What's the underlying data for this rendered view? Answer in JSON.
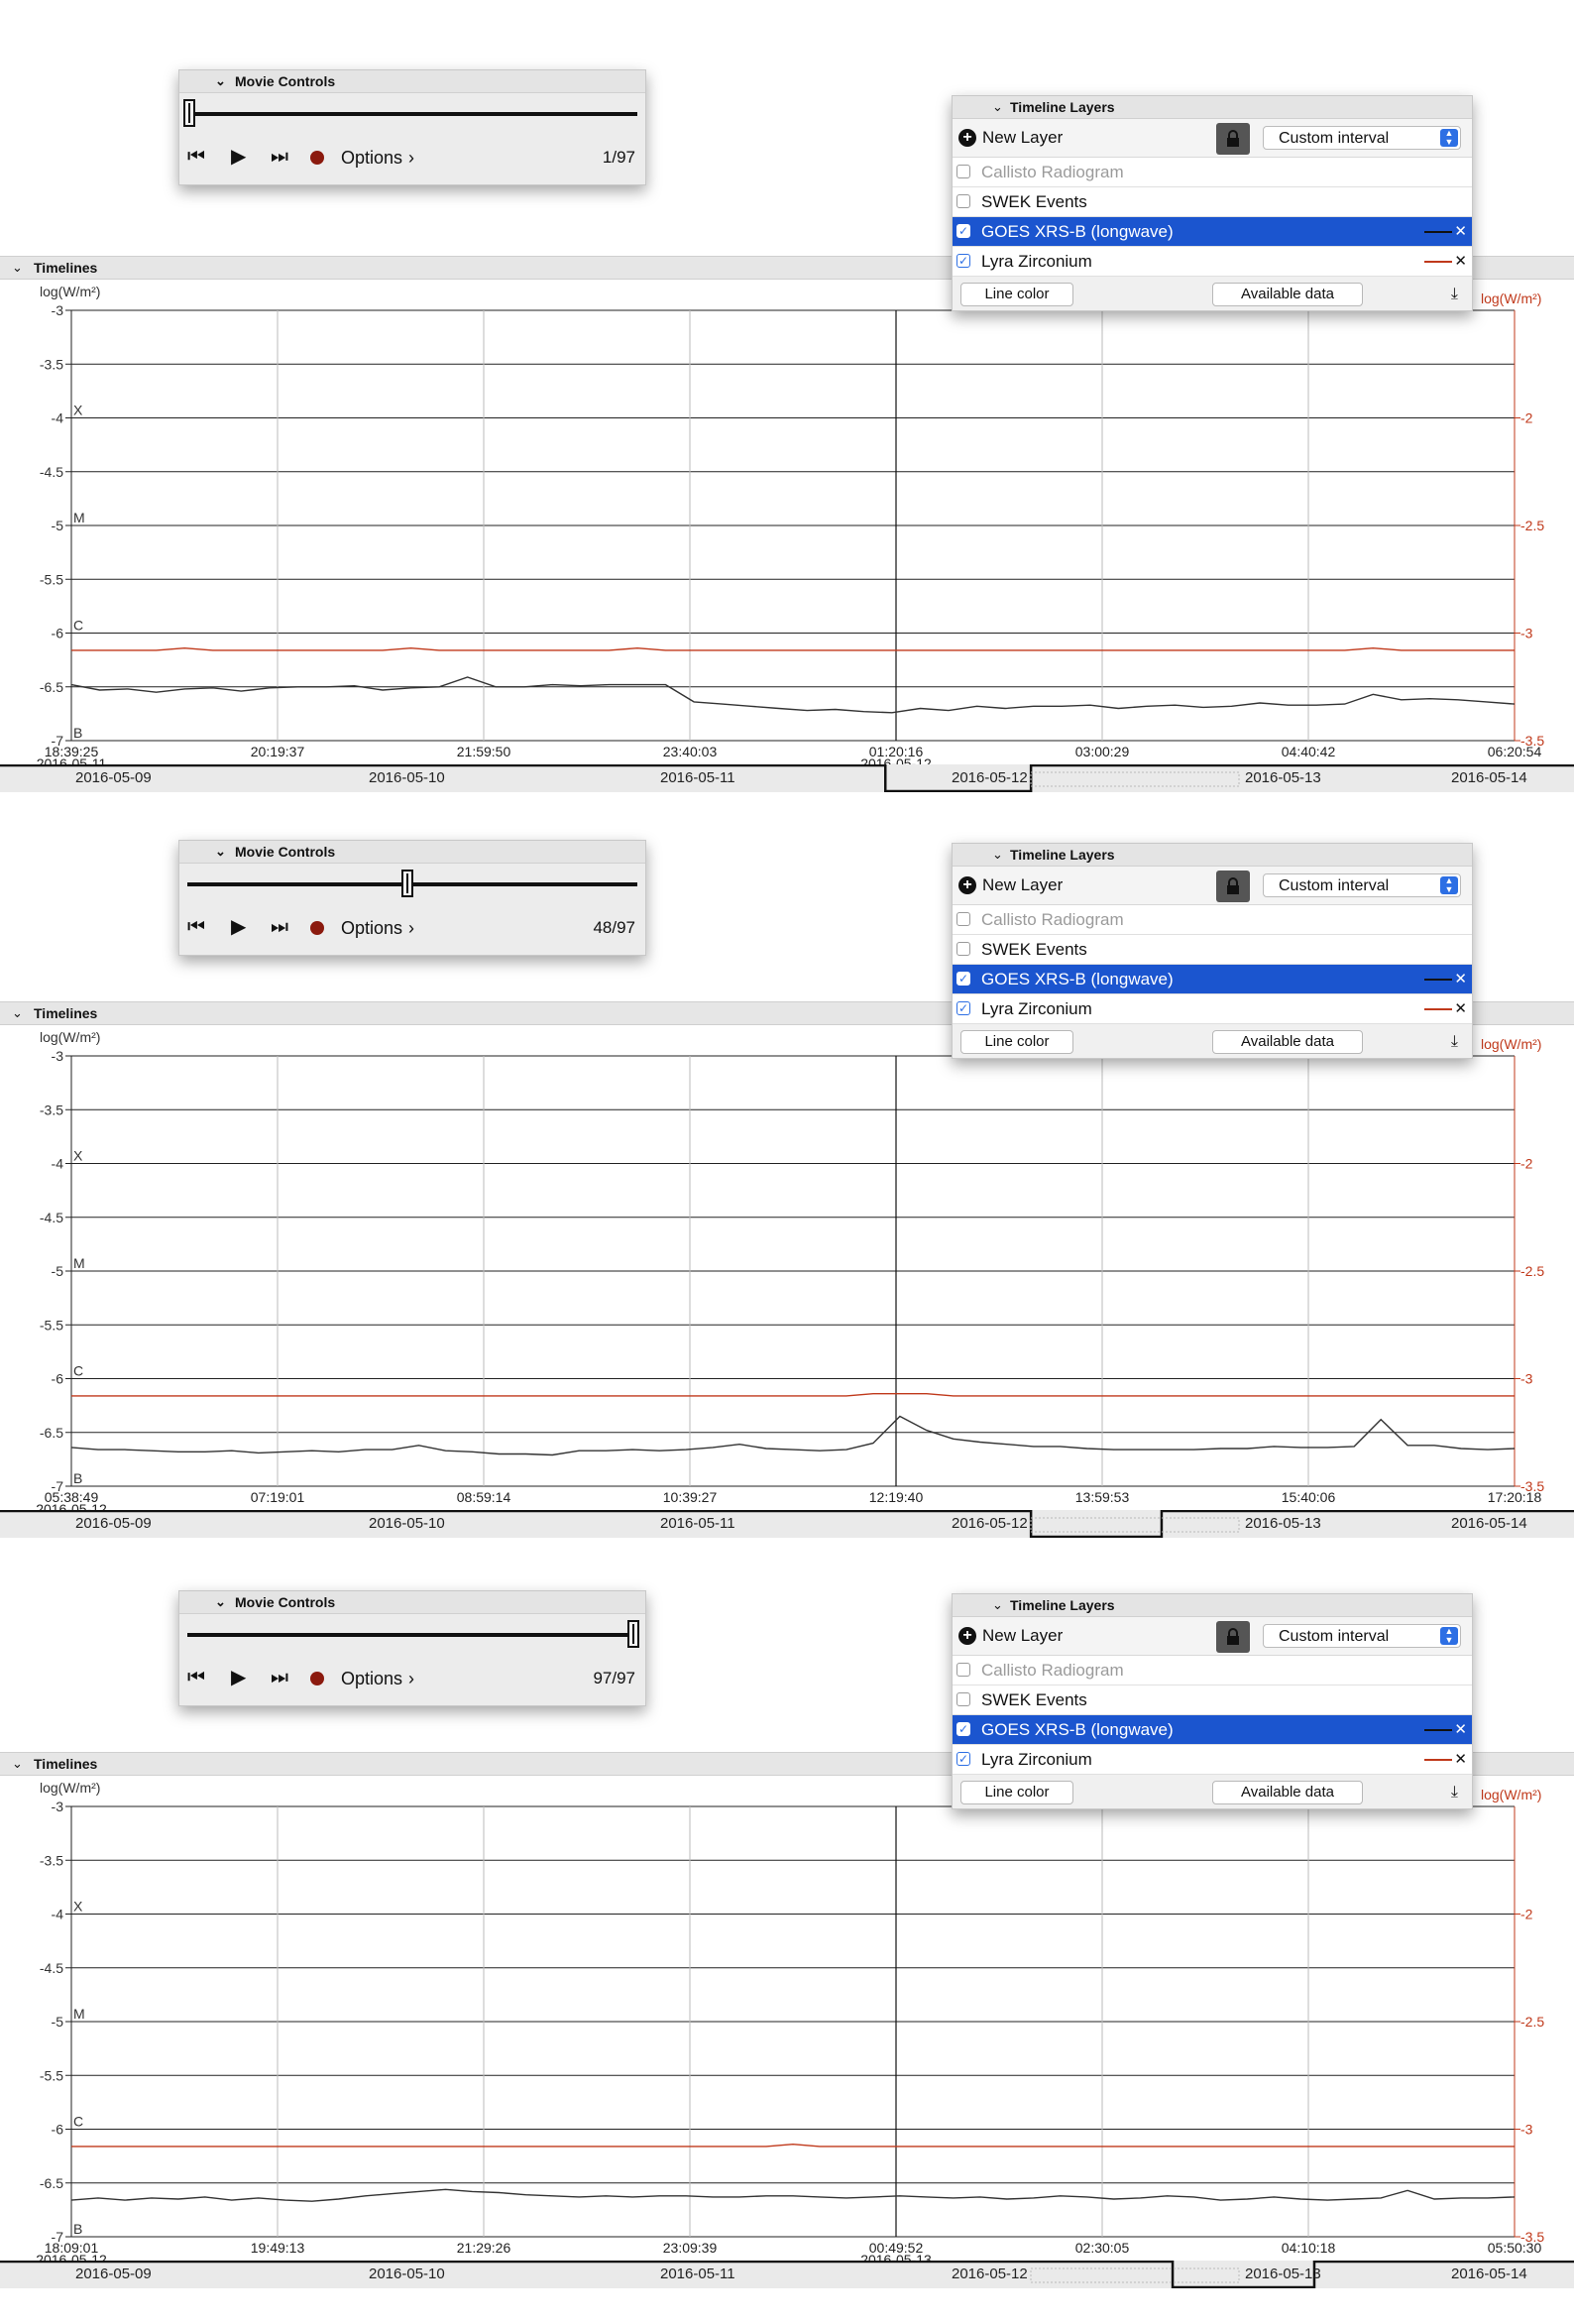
{
  "movie_controls": {
    "title": "Movie Controls",
    "options_label": "Options",
    "options_chevron": "›",
    "icons": [
      "step-back-icon",
      "play-icon",
      "step-forward-icon",
      "record-icon"
    ]
  },
  "timelines_label": "Timelines",
  "layers_panel": {
    "title": "Timeline Layers",
    "new_layer_label": "New Layer",
    "interval_value": "Custom interval",
    "line_color_label": "Line color",
    "available_data_label": "Available data",
    "rows": [
      {
        "name": "Callisto Radiogram",
        "checked": false,
        "disabled": true,
        "selected": false
      },
      {
        "name": "SWEK Events",
        "checked": false,
        "disabled": false,
        "selected": false
      },
      {
        "name": "GOES XRS-B (longwave)",
        "checked": true,
        "disabled": false,
        "selected": true,
        "color": "#111111"
      },
      {
        "name": "Lyra Zirconium",
        "checked": true,
        "disabled": false,
        "selected": false,
        "color": "#c0391b"
      }
    ]
  },
  "range_dates": [
    "2016-05-09",
    "2016-05-10",
    "2016-05-11",
    "2016-05-12",
    "2016-05-13",
    "2016-05-14"
  ],
  "panels": [
    {
      "frame_label": "1/97",
      "frame_fraction": 0.0,
      "chart_data": {
        "type": "line",
        "left_axis_label": "log(W/m²)",
        "right_axis_label": "log(W/m²)",
        "left_ticks": [
          "-3",
          "-3.5",
          "-4",
          "-4.5",
          "-5",
          "-5.5",
          "-6",
          "-6.5",
          "-7"
        ],
        "right_ticks": [
          "-2",
          "-2.5",
          "-3",
          "-3.5"
        ],
        "flare_classes": [
          "X",
          "M",
          "C",
          "B"
        ],
        "x_ticks": [
          "18:39:25",
          "20:19:37",
          "21:59:50",
          "23:40:03",
          "01:20:16",
          "03:00:29",
          "04:40:42",
          "06:20:54"
        ],
        "x_dates": {
          "first": "2016-05-11",
          "midnight": "2016-05-12"
        },
        "ylim_left": [
          -7,
          -3
        ],
        "ylim_right": [
          -3.5,
          -1.5
        ],
        "series": [
          {
            "name": "GOES XRS-B (longwave)",
            "color": "#333333",
            "values": [
              -6.48,
              -6.53,
              -6.52,
              -6.55,
              -6.52,
              -6.51,
              -6.54,
              -6.51,
              -6.5,
              -6.5,
              -6.49,
              -6.53,
              -6.51,
              -6.5,
              -6.41,
              -6.5,
              -6.5,
              -6.48,
              -6.49,
              -6.48,
              -6.48,
              -6.48,
              -6.64,
              -6.66,
              -6.68,
              -6.7,
              -6.72,
              -6.71,
              -6.73,
              -6.74,
              -6.7,
              -6.72,
              -6.68,
              -6.7,
              -6.68,
              -6.68,
              -6.67,
              -6.7,
              -6.68,
              -6.67,
              -6.69,
              -6.68,
              -6.65,
              -6.67,
              -6.67,
              -6.66,
              -6.57,
              -6.62,
              -6.61,
              -6.62,
              -6.64,
              -6.66
            ]
          },
          {
            "name": "Lyra Zirconium",
            "color": "#c0391b",
            "values": [
              -3.08,
              -3.08,
              -3.08,
              -3.08,
              -3.07,
              -3.08,
              -3.08,
              -3.08,
              -3.08,
              -3.08,
              -3.08,
              -3.08,
              -3.07,
              -3.08,
              -3.08,
              -3.08,
              -3.08,
              -3.08,
              -3.08,
              -3.08,
              -3.07,
              -3.08,
              -3.08,
              -3.08,
              -3.08,
              -3.08,
              -3.08,
              -3.08,
              -3.08,
              -3.08,
              -3.08,
              -3.08,
              -3.08,
              -3.08,
              -3.08,
              -3.08,
              -3.08,
              -3.08,
              -3.08,
              -3.08,
              -3.08,
              -3.08,
              -3.08,
              -3.08,
              -3.08,
              -3.08,
              -3.07,
              -3.08,
              -3.08,
              -3.08,
              -3.08,
              -3.08
            ]
          }
        ]
      },
      "range_selection": {
        "start": "2016-05-12",
        "from_frac": 0.5625,
        "to_frac": 0.655
      }
    },
    {
      "frame_label": "48/97",
      "frame_fraction": 0.49,
      "chart_data": {
        "type": "line",
        "left_axis_label": "log(W/m²)",
        "right_axis_label": "log(W/m²)",
        "left_ticks": [
          "-3",
          "-3.5",
          "-4",
          "-4.5",
          "-5",
          "-5.5",
          "-6",
          "-6.5",
          "-7"
        ],
        "right_ticks": [
          "-2",
          "-2.5",
          "-3",
          "-3.5"
        ],
        "flare_classes": [
          "X",
          "M",
          "C",
          "B"
        ],
        "x_ticks": [
          "05:38:49",
          "07:19:01",
          "08:59:14",
          "10:39:27",
          "12:19:40",
          "13:59:53",
          "15:40:06",
          "17:20:18"
        ],
        "x_dates": {
          "first": "2016-05-12",
          "midnight": ""
        },
        "ylim_left": [
          -7,
          -3
        ],
        "ylim_right": [
          -3.5,
          -1.5
        ],
        "series": [
          {
            "name": "GOES XRS-B (longwave)",
            "color": "#333333",
            "values": [
              -6.64,
              -6.66,
              -6.66,
              -6.67,
              -6.68,
              -6.68,
              -6.67,
              -6.69,
              -6.68,
              -6.67,
              -6.68,
              -6.66,
              -6.66,
              -6.62,
              -6.67,
              -6.68,
              -6.7,
              -6.7,
              -6.71,
              -6.67,
              -6.67,
              -6.66,
              -6.67,
              -6.66,
              -6.64,
              -6.61,
              -6.65,
              -6.66,
              -6.67,
              -6.66,
              -6.6,
              -6.35,
              -6.48,
              -6.56,
              -6.59,
              -6.61,
              -6.63,
              -6.63,
              -6.65,
              -6.66,
              -6.66,
              -6.66,
              -6.66,
              -6.65,
              -6.65,
              -6.63,
              -6.64,
              -6.64,
              -6.63,
              -6.38,
              -6.62,
              -6.62,
              -6.65,
              -6.66,
              -6.65
            ]
          },
          {
            "name": "Lyra Zirconium",
            "color": "#c0391b",
            "values": [
              -3.08,
              -3.08,
              -3.08,
              -3.08,
              -3.08,
              -3.08,
              -3.08,
              -3.08,
              -3.08,
              -3.08,
              -3.08,
              -3.08,
              -3.08,
              -3.08,
              -3.08,
              -3.08,
              -3.08,
              -3.08,
              -3.08,
              -3.08,
              -3.08,
              -3.08,
              -3.08,
              -3.08,
              -3.08,
              -3.08,
              -3.08,
              -3.08,
              -3.08,
              -3.08,
              -3.07,
              -3.07,
              -3.07,
              -3.08,
              -3.08,
              -3.08,
              -3.08,
              -3.08,
              -3.08,
              -3.08,
              -3.08,
              -3.08,
              -3.08,
              -3.08,
              -3.08,
              -3.08,
              -3.08,
              -3.08,
              -3.08,
              -3.08,
              -3.08,
              -3.08,
              -3.08,
              -3.08,
              -3.08
            ]
          }
        ]
      },
      "range_selection": {
        "start": "2016-05-12",
        "from_frac": 0.655,
        "to_frac": 0.738
      }
    },
    {
      "frame_label": "97/97",
      "frame_fraction": 1.0,
      "chart_data": {
        "type": "line",
        "left_axis_label": "log(W/m²)",
        "right_axis_label": "log(W/m²)",
        "left_ticks": [
          "-3",
          "-3.5",
          "-4",
          "-4.5",
          "-5",
          "-5.5",
          "-6",
          "-6.5",
          "-7"
        ],
        "right_ticks": [
          "-2",
          "-2.5",
          "-3",
          "-3.5"
        ],
        "flare_classes": [
          "X",
          "M",
          "C",
          "B"
        ],
        "x_ticks": [
          "18:09:01",
          "19:49:13",
          "21:29:26",
          "23:09:39",
          "00:49:52",
          "02:30:05",
          "04:10:18",
          "05:50:30"
        ],
        "x_dates": {
          "first": "2016-05-12",
          "midnight": "2016-05-13"
        },
        "ylim_left": [
          -7,
          -3
        ],
        "ylim_right": [
          -3.5,
          -1.5
        ],
        "series": [
          {
            "name": "GOES XRS-B (longwave)",
            "color": "#333333",
            "values": [
              -6.66,
              -6.64,
              -6.66,
              -6.64,
              -6.65,
              -6.63,
              -6.66,
              -6.64,
              -6.66,
              -6.67,
              -6.65,
              -6.62,
              -6.6,
              -6.58,
              -6.56,
              -6.58,
              -6.59,
              -6.61,
              -6.62,
              -6.63,
              -6.62,
              -6.63,
              -6.62,
              -6.62,
              -6.63,
              -6.63,
              -6.62,
              -6.62,
              -6.63,
              -6.64,
              -6.63,
              -6.62,
              -6.63,
              -6.64,
              -6.63,
              -6.65,
              -6.64,
              -6.62,
              -6.63,
              -6.65,
              -6.64,
              -6.62,
              -6.63,
              -6.66,
              -6.65,
              -6.63,
              -6.65,
              -6.66,
              -6.65,
              -6.64,
              -6.57,
              -6.65,
              -6.64,
              -6.64,
              -6.63
            ]
          },
          {
            "name": "Lyra Zirconium",
            "color": "#c0391b",
            "values": [
              -3.08,
              -3.08,
              -3.08,
              -3.08,
              -3.08,
              -3.08,
              -3.08,
              -3.08,
              -3.08,
              -3.08,
              -3.08,
              -3.08,
              -3.08,
              -3.08,
              -3.08,
              -3.08,
              -3.08,
              -3.08,
              -3.08,
              -3.08,
              -3.08,
              -3.08,
              -3.08,
              -3.08,
              -3.08,
              -3.08,
              -3.08,
              -3.07,
              -3.08,
              -3.08,
              -3.08,
              -3.08,
              -3.08,
              -3.08,
              -3.08,
              -3.08,
              -3.08,
              -3.08,
              -3.08,
              -3.08,
              -3.08,
              -3.08,
              -3.08,
              -3.08,
              -3.08,
              -3.08,
              -3.08,
              -3.08,
              -3.08,
              -3.08,
              -3.08,
              -3.08,
              -3.08,
              -3.08,
              -3.08
            ]
          }
        ]
      },
      "range_selection": {
        "start": "2016-05-12",
        "from_frac": 0.745,
        "to_frac": 0.835
      }
    }
  ]
}
